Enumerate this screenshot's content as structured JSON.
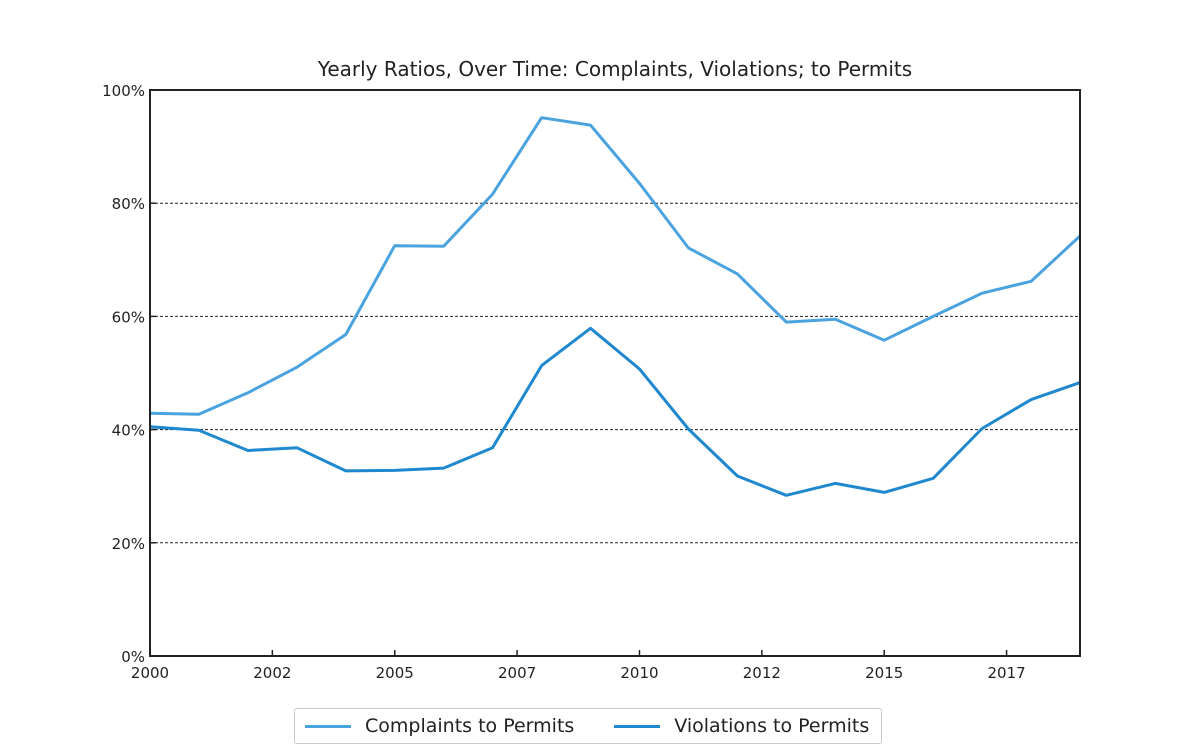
{
  "chart_data": {
    "type": "line",
    "title": "Yearly Ratios, Over Time: Complaints, Violations; to Permits",
    "xlabel": "",
    "ylabel": "",
    "x": [
      2000,
      2001,
      2002,
      2003,
      2004,
      2005,
      2006,
      2007,
      2008,
      2009,
      2010,
      2011,
      2012,
      2013,
      2014,
      2015,
      2016,
      2017,
      2018,
      2019
    ],
    "xlim": [
      2000,
      2019
    ],
    "ylim": [
      0,
      100
    ],
    "x_tick_labels": [
      "2000",
      "2002",
      "2005",
      "2007",
      "2010",
      "2012",
      "2015",
      "2017"
    ],
    "y_tick_labels": [
      "0%",
      "20%",
      "40%",
      "60%",
      "80%",
      "100%"
    ],
    "y_ticks": [
      0,
      20,
      40,
      60,
      80,
      100
    ],
    "grid": "horizontal dashed",
    "legend_position": "bottom",
    "series": [
      {
        "name": "Complaints to Permits",
        "color": "#4aa3df",
        "values": [
          42.9,
          42.7,
          46.5,
          51.0,
          56.8,
          72.5,
          72.4,
          81.6,
          95.1,
          93.8,
          83.5,
          72.1,
          67.5,
          59.0,
          59.5,
          55.8,
          60.0,
          64.1,
          66.2,
          74.2
        ]
      },
      {
        "name": "Violations to Permits",
        "color": "#1f88cf",
        "values": [
          40.5,
          39.9,
          36.3,
          36.8,
          32.7,
          32.8,
          33.2,
          36.8,
          51.3,
          57.9,
          50.7,
          40.1,
          31.8,
          28.4,
          30.5,
          28.9,
          31.4,
          40.2,
          45.3,
          48.3
        ]
      }
    ]
  }
}
